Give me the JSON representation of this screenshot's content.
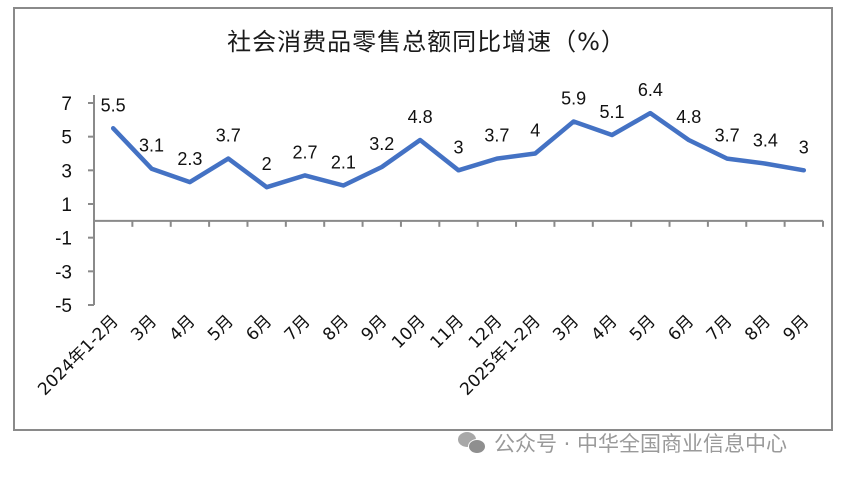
{
  "title": "社会消费品零售总额同比增速（%）",
  "watermark": {
    "icon": "wechat-icon",
    "text": "公众号 · 中华全国商业信息中心"
  },
  "colors": {
    "line": "#4472C4",
    "axis": "#8a8a8a",
    "frame": "#8a8a8a",
    "watermark": "#9a9a9a"
  },
  "chart_data": {
    "type": "line",
    "title": "社会消费品零售总额同比增速（%）",
    "xlabel": "",
    "ylabel": "",
    "ylim": [
      -5,
      7
    ],
    "yticks": [
      7,
      5,
      3,
      1,
      -1,
      -3,
      -5
    ],
    "grid": false,
    "legend": null,
    "categories": [
      "2024年1-2月",
      "3月",
      "4月",
      "5月",
      "6月",
      "7月",
      "8月",
      "9月",
      "10月",
      "11月",
      "12月",
      "2025年1-2月",
      "3月",
      "4月",
      "5月",
      "6月",
      "7月",
      "8月",
      "9月"
    ],
    "series": [
      {
        "name": "社会消费品零售总额同比增速",
        "values": [
          5.5,
          3.1,
          2.3,
          3.7,
          2,
          2.7,
          2.1,
          3.2,
          4.8,
          3,
          3.7,
          4,
          5.9,
          5.1,
          6.4,
          4.8,
          3.7,
          3.4,
          3
        ],
        "data_labels": [
          "5.5",
          "3.1",
          "2.3",
          "3.7",
          "2",
          "2.7",
          "2.1",
          "3.2",
          "4.8",
          "3",
          "3.7",
          "4",
          "5.9",
          "5.1",
          "6.4",
          "4.8",
          "3.7",
          "3.4",
          "3"
        ]
      }
    ]
  }
}
